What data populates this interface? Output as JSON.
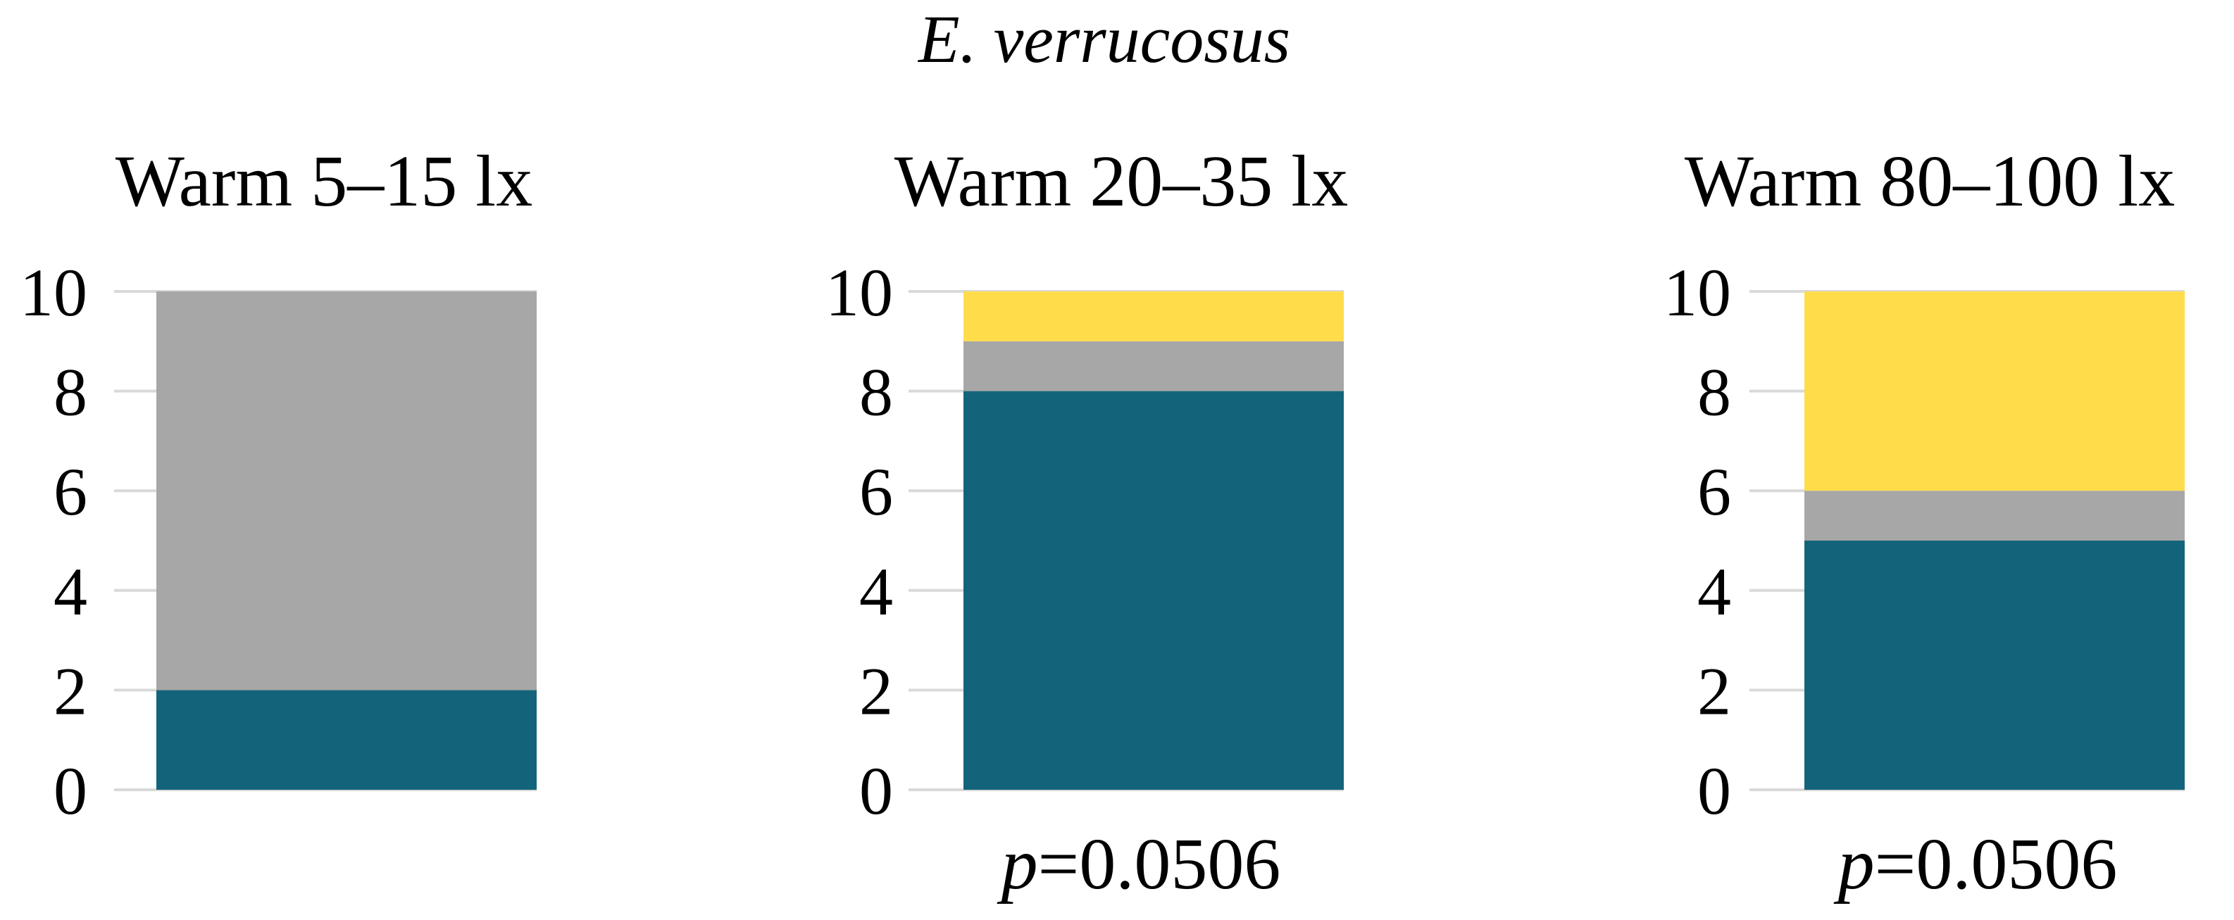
{
  "species_title": "E. verrucosus",
  "colors": {
    "bottom": "#13647b",
    "middle": "#a7a7a7",
    "top": "#ffdd4a",
    "grid": "#d9d9d9"
  },
  "chart_data": [
    {
      "type": "bar",
      "stacked": true,
      "title": "Warm 5–15 lx",
      "ylim": [
        0,
        10
      ],
      "yticks": [
        "0",
        "2",
        "4",
        "6",
        "8",
        "10"
      ],
      "grid": true,
      "segments": [
        {
          "color": "bottom",
          "value": 2
        },
        {
          "color": "middle",
          "value": 8
        },
        {
          "color": "top",
          "value": 0
        }
      ],
      "p_symbol": "",
      "p_value": ""
    },
    {
      "type": "bar",
      "stacked": true,
      "title": "Warm 20–35 lx",
      "ylim": [
        0,
        10
      ],
      "yticks": [
        "0",
        "2",
        "4",
        "6",
        "8",
        "10"
      ],
      "grid": true,
      "segments": [
        {
          "color": "bottom",
          "value": 8
        },
        {
          "color": "middle",
          "value": 1
        },
        {
          "color": "top",
          "value": 1
        }
      ],
      "p_symbol": "p",
      "p_value": "=0.0506"
    },
    {
      "type": "bar",
      "stacked": true,
      "title": "Warm 80–100 lx",
      "ylim": [
        0,
        10
      ],
      "yticks": [
        "0",
        "2",
        "4",
        "6",
        "8",
        "10"
      ],
      "grid": true,
      "segments": [
        {
          "color": "bottom",
          "value": 5
        },
        {
          "color": "middle",
          "value": 1
        },
        {
          "color": "top",
          "value": 4
        }
      ],
      "p_symbol": "p",
      "p_value": "=0.0506"
    }
  ]
}
